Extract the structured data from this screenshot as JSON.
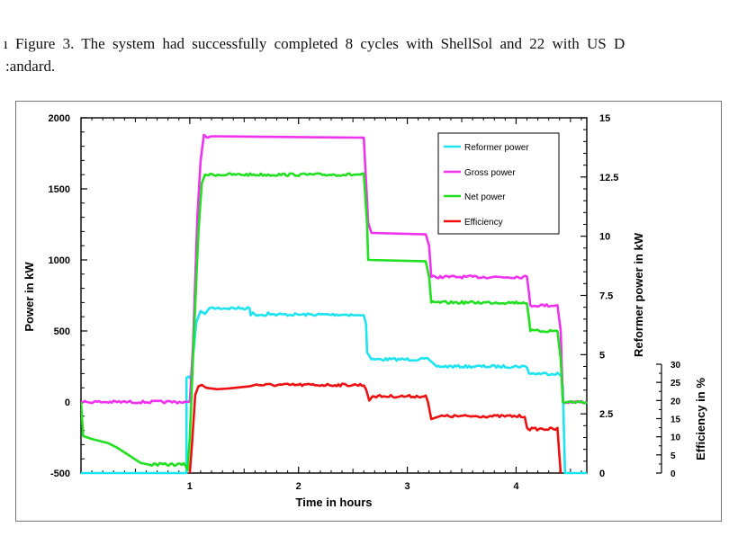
{
  "caption": {
    "line1": "ı Figure 3. The system had successfully completed 8 cycles with ShellSol and 22 with US D",
    "line2": ":andard."
  },
  "chart_data": {
    "type": "line",
    "xlabel": "Time in hours",
    "ylabel_left": "Power in kW",
    "ylabel_right": "Reformer power in kW",
    "ylabel_eff": "Efficiency in %",
    "xlim": [
      0,
      4.65
    ],
    "ylim_left": [
      -500,
      2000
    ],
    "ylim_right": [
      0,
      15
    ],
    "ylim_eff": [
      0,
      30
    ],
    "x_ticks": [
      {
        "value": 1,
        "label": "1"
      },
      {
        "value": 2,
        "label": "2"
      },
      {
        "value": 3,
        "label": "3"
      },
      {
        "value": 4,
        "label": "4"
      }
    ],
    "y_left_ticks": [
      {
        "value": 2000,
        "label": "2000"
      },
      {
        "value": 1500,
        "label": "1500"
      },
      {
        "value": 1000,
        "label": "1000"
      },
      {
        "value": 500,
        "label": "500"
      },
      {
        "value": 0,
        "label": "0"
      },
      {
        "value": -500,
        "label": "-500"
      }
    ],
    "y_right_ticks": [
      {
        "value": 15,
        "label": "15"
      },
      {
        "value": 12.5,
        "label": "12.5"
      },
      {
        "value": 10,
        "label": "10"
      },
      {
        "value": 7.5,
        "label": "7.5"
      },
      {
        "value": 5,
        "label": "5"
      },
      {
        "value": 2.5,
        "label": "2.5"
      },
      {
        "value": 0,
        "label": "0"
      }
    ],
    "y_eff_ticks": [
      {
        "value": 30,
        "label": "30"
      },
      {
        "value": 25,
        "label": "25"
      },
      {
        "value": 20,
        "label": "20"
      },
      {
        "value": 15,
        "label": "15"
      },
      {
        "value": 10,
        "label": "10"
      },
      {
        "value": 5,
        "label": "5"
      },
      {
        "value": 0,
        "label": "0"
      }
    ],
    "legend_position": "top-right",
    "series": [
      {
        "name": "Reformer power",
        "color": "#1ee3f0",
        "axis": "left",
        "points": [
          [
            0,
            -500
          ],
          [
            0.97,
            -500
          ],
          [
            0.97,
            170
          ],
          [
            1.01,
            170
          ],
          [
            1.06,
            560
          ],
          [
            1.1,
            640
          ],
          [
            1.14,
            620
          ],
          [
            1.18,
            660
          ],
          [
            1.28,
            660
          ],
          [
            1.55,
            660
          ],
          [
            1.56,
            610
          ],
          [
            1.58,
            630
          ],
          [
            1.6,
            615
          ],
          [
            1.7,
            615
          ],
          [
            1.72,
            630
          ],
          [
            1.74,
            615
          ],
          [
            1.9,
            615
          ],
          [
            2.3,
            615
          ],
          [
            2.5,
            615
          ],
          [
            2.6,
            610
          ],
          [
            2.62,
            550
          ],
          [
            2.63,
            350
          ],
          [
            2.67,
            300
          ],
          [
            3.2,
            300
          ],
          [
            3.27,
            250
          ],
          [
            4.1,
            250
          ],
          [
            4.12,
            200
          ],
          [
            4.38,
            200
          ],
          [
            4.42,
            180
          ],
          [
            4.43,
            100
          ],
          [
            4.45,
            -500
          ],
          [
            4.65,
            -500
          ]
        ]
      },
      {
        "name": "Gross power",
        "color": "#f032f0",
        "axis": "left",
        "points": [
          [
            0,
            0
          ],
          [
            0.97,
            0
          ],
          [
            1.0,
            0
          ],
          [
            1.03,
            400
          ],
          [
            1.07,
            1300
          ],
          [
            1.1,
            1700
          ],
          [
            1.13,
            1880
          ],
          [
            1.16,
            1860
          ],
          [
            1.2,
            1870
          ],
          [
            2.6,
            1860
          ],
          [
            2.64,
            1260
          ],
          [
            2.67,
            1190
          ],
          [
            3.17,
            1180
          ],
          [
            3.2,
            1100
          ],
          [
            3.22,
            880
          ],
          [
            4.1,
            880
          ],
          [
            4.12,
            760
          ],
          [
            4.13,
            680
          ],
          [
            4.38,
            680
          ],
          [
            4.41,
            500
          ],
          [
            4.43,
            0
          ],
          [
            4.65,
            0
          ]
        ]
      },
      {
        "name": "Net power",
        "color": "#20e020",
        "axis": "left",
        "points": [
          [
            0,
            0
          ],
          [
            0.02,
            -240
          ],
          [
            0.1,
            -260
          ],
          [
            0.25,
            -290
          ],
          [
            0.33,
            -320
          ],
          [
            0.45,
            -380
          ],
          [
            0.55,
            -430
          ],
          [
            0.62,
            -440
          ],
          [
            0.96,
            -440
          ],
          [
            0.98,
            -480
          ],
          [
            1.0,
            -250
          ],
          [
            1.04,
            500
          ],
          [
            1.08,
            1200
          ],
          [
            1.11,
            1540
          ],
          [
            1.14,
            1600
          ],
          [
            2.6,
            1600
          ],
          [
            2.63,
            1250
          ],
          [
            2.64,
            1000
          ],
          [
            3.17,
            990
          ],
          [
            3.2,
            880
          ],
          [
            3.22,
            700
          ],
          [
            4.1,
            700
          ],
          [
            4.12,
            580
          ],
          [
            4.13,
            500
          ],
          [
            4.38,
            500
          ],
          [
            4.41,
            300
          ],
          [
            4.43,
            0
          ],
          [
            4.65,
            0
          ]
        ]
      },
      {
        "name": "Efficiency",
        "color": "#ee1010",
        "axis": "left",
        "points": [
          [
            1.0,
            -500
          ],
          [
            1.02,
            -300
          ],
          [
            1.05,
            50
          ],
          [
            1.08,
            110
          ],
          [
            1.11,
            120
          ],
          [
            1.15,
            100
          ],
          [
            1.25,
            90
          ],
          [
            1.35,
            95
          ],
          [
            1.55,
            110
          ],
          [
            1.6,
            120
          ],
          [
            2.6,
            120
          ],
          [
            2.62,
            90
          ],
          [
            2.65,
            10
          ],
          [
            2.68,
            40
          ],
          [
            3.17,
            40
          ],
          [
            3.19,
            0
          ],
          [
            3.22,
            -120
          ],
          [
            3.3,
            -100
          ],
          [
            4.08,
            -100
          ],
          [
            4.1,
            -180
          ],
          [
            4.11,
            -190
          ],
          [
            4.38,
            -190
          ],
          [
            4.4,
            -400
          ],
          [
            4.41,
            -500
          ]
        ]
      }
    ]
  }
}
